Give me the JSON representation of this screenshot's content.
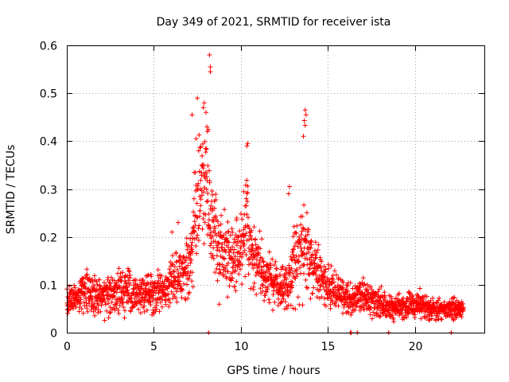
{
  "chart_data": {
    "type": "scatter",
    "title": "Day 349 of 2021, SRMTID for receiver ista",
    "xlabel": "GPS time / hours",
    "ylabel": "SRMTID / TECUs",
    "xlim": [
      0,
      24
    ],
    "ylim": [
      0,
      0.6
    ],
    "xticks": [
      0,
      5,
      10,
      15,
      20
    ],
    "yticks": [
      0,
      0.1,
      0.2,
      0.3,
      0.4,
      0.5,
      0.6
    ],
    "xtick_labels": [
      "0",
      "5",
      "10",
      "15",
      "20"
    ],
    "ytick_labels": [
      "0",
      "0.1",
      "0.2",
      "0.3",
      "0.4",
      "0.5",
      "0.6"
    ],
    "grid": true,
    "marker": "+",
    "series_color": "#ff0000",
    "profile": {
      "description": "approximate envelope of the scatter cloud",
      "x_hours": [
        0,
        1,
        2,
        3,
        4,
        5,
        5.5,
        6,
        6.5,
        7,
        7.3,
        7.6,
        8,
        8.3,
        8.6,
        9,
        9.5,
        10,
        10.3,
        10.6,
        11,
        11.5,
        12,
        12.5,
        13,
        13.3,
        13.6,
        14,
        14.5,
        15,
        15.5,
        16,
        16.5,
        17,
        17.5,
        18,
        19,
        20,
        21,
        22,
        22.8
      ],
      "y_center": [
        0.06,
        0.09,
        0.08,
        0.09,
        0.08,
        0.08,
        0.09,
        0.11,
        0.12,
        0.14,
        0.22,
        0.3,
        0.33,
        0.25,
        0.19,
        0.17,
        0.15,
        0.17,
        0.25,
        0.17,
        0.14,
        0.12,
        0.1,
        0.09,
        0.13,
        0.16,
        0.2,
        0.15,
        0.12,
        0.1,
        0.09,
        0.07,
        0.07,
        0.08,
        0.07,
        0.06,
        0.05,
        0.06,
        0.05,
        0.05,
        0.05
      ],
      "y_spread": [
        0.025,
        0.04,
        0.035,
        0.04,
        0.035,
        0.035,
        0.04,
        0.05,
        0.05,
        0.06,
        0.1,
        0.12,
        0.12,
        0.1,
        0.07,
        0.07,
        0.06,
        0.07,
        0.09,
        0.07,
        0.05,
        0.05,
        0.04,
        0.04,
        0.06,
        0.08,
        0.1,
        0.06,
        0.05,
        0.04,
        0.035,
        0.03,
        0.03,
        0.03,
        0.03,
        0.025,
        0.02,
        0.025,
        0.02,
        0.02,
        0.02
      ]
    },
    "n_points": 2200,
    "notable_points": [
      {
        "x": 8.2,
        "y": 0.58
      },
      {
        "x": 8.25,
        "y": 0.555
      },
      {
        "x": 8.25,
        "y": 0.545
      },
      {
        "x": 7.5,
        "y": 0.49
      },
      {
        "x": 7.9,
        "y": 0.48
      },
      {
        "x": 7.85,
        "y": 0.47
      },
      {
        "x": 8.0,
        "y": 0.46
      },
      {
        "x": 7.2,
        "y": 0.455
      },
      {
        "x": 8.05,
        "y": 0.43
      },
      {
        "x": 10.4,
        "y": 0.395
      },
      {
        "x": 10.35,
        "y": 0.39
      },
      {
        "x": 13.7,
        "y": 0.465
      },
      {
        "x": 13.75,
        "y": 0.455
      },
      {
        "x": 13.65,
        "y": 0.443
      },
      {
        "x": 13.7,
        "y": 0.433
      },
      {
        "x": 13.6,
        "y": 0.41
      },
      {
        "x": 12.8,
        "y": 0.305
      },
      {
        "x": 12.75,
        "y": 0.29
      },
      {
        "x": 6.05,
        "y": 0.21
      },
      {
        "x": 6.4,
        "y": 0.23
      }
    ],
    "zero_points": [
      {
        "x": 8.15,
        "y": 0
      },
      {
        "x": 16.3,
        "y": 0
      },
      {
        "x": 16.35,
        "y": 0
      },
      {
        "x": 16.7,
        "y": 0
      },
      {
        "x": 18.5,
        "y": 0
      },
      {
        "x": 22.1,
        "y": 0
      }
    ]
  }
}
